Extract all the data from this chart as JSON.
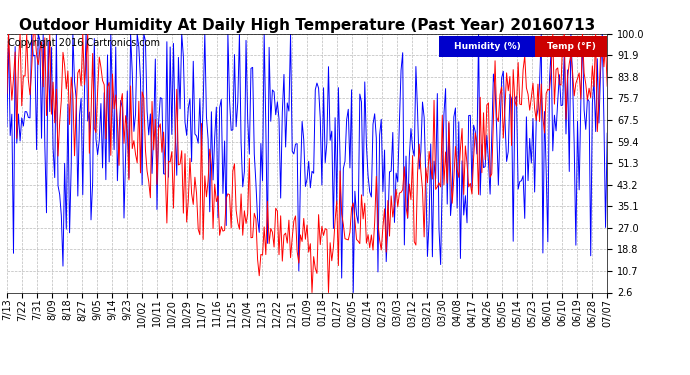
{
  "title": "Outdoor Humidity At Daily High Temperature (Past Year) 20160713",
  "copyright": "Copyright 2016 Cartronics.com",
  "y_ticks": [
    2.6,
    10.7,
    18.8,
    27.0,
    35.1,
    43.2,
    51.3,
    59.4,
    67.5,
    75.7,
    83.8,
    91.9,
    100.0
  ],
  "ylim": [
    2.6,
    100.0
  ],
  "x_labels": [
    "7/13",
    "7/22",
    "7/31",
    "8/09",
    "8/18",
    "8/27",
    "9/05",
    "9/14",
    "9/23",
    "10/02",
    "10/11",
    "10/20",
    "10/29",
    "11/07",
    "11/16",
    "11/25",
    "12/04",
    "12/13",
    "12/22",
    "12/31",
    "01/09",
    "01/18",
    "01/27",
    "02/05",
    "02/14",
    "02/23",
    "03/03",
    "03/12",
    "03/21",
    "03/30",
    "04/08",
    "04/17",
    "04/26",
    "05/05",
    "05/14",
    "05/23",
    "06/01",
    "06/10",
    "06/19",
    "06/28",
    "07/07"
  ],
  "legend_humidity_label": "Humidity (%)",
  "legend_temp_label": "Temp (°F)",
  "legend_humidity_bg": "#0000cc",
  "legend_temp_bg": "#cc0000",
  "bg_color": "#ffffff",
  "plot_bg": "#ffffff",
  "grid_color": "#bbbbbb",
  "title_fontsize": 11,
  "copyright_fontsize": 7,
  "tick_fontsize": 7,
  "humidity_color": "#0000ff",
  "temp_color": "#ff0000"
}
